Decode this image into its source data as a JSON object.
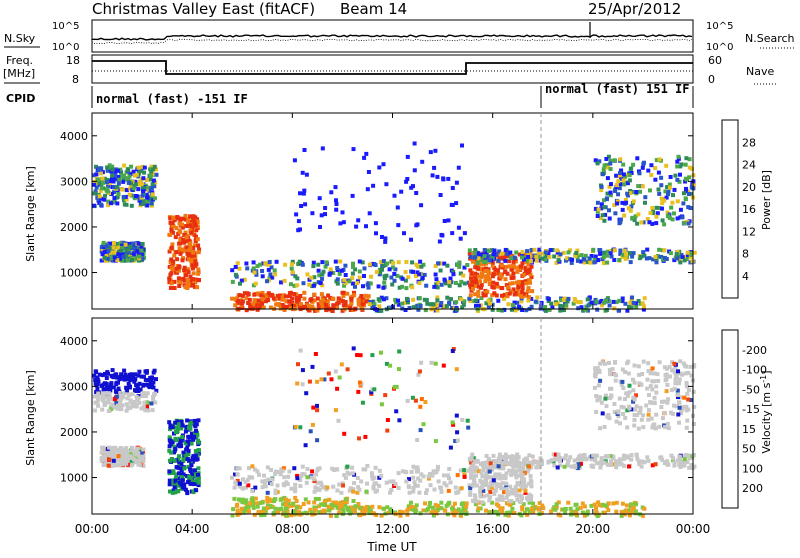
{
  "header": {
    "title": "Christmas Valley East (fitACF)",
    "beam": "Beam 14",
    "date": "25/Apr/2012"
  },
  "noise_panel": {
    "left_label": "N.Sky",
    "right_label": "N.Search",
    "left_ticks": [
      "10^5",
      "10^0"
    ],
    "right_ticks": [
      "10^5",
      "10^0"
    ]
  },
  "freq_panel": {
    "left_label_top": "Freq.",
    "left_label_bottom": "[MHz]",
    "right_label": "Nave",
    "left_ticks": [
      "18",
      "8"
    ],
    "right_ticks": [
      "60",
      "0"
    ]
  },
  "cpid": {
    "label": "CPID",
    "segments": [
      "normal (fast) -151 IF",
      "normal (fast) 151 IF"
    ]
  },
  "x_axis": {
    "label": "Time UT",
    "ticks": [
      "00:00",
      "04:00",
      "08:00",
      "12:00",
      "16:00",
      "20:00",
      "00:00"
    ]
  },
  "chart_data": [
    {
      "type": "heatmap",
      "panel": "power",
      "ylabel": "Slant Range [km]",
      "yticks": [
        1000,
        2000,
        3000,
        4000
      ],
      "ylim": [
        200,
        4500
      ],
      "colorbar": {
        "label": "Power [dB]",
        "ticks": [
          "4",
          "8",
          "12",
          "16",
          "20",
          "24",
          "28"
        ],
        "colors": [
          "#1a1aff",
          "#2a55c8",
          "#2f8a5a",
          "#4aa84a",
          "#e8c020",
          "#f07a10",
          "#e83010",
          "#ff0000"
        ]
      }
    },
    {
      "type": "heatmap",
      "panel": "velocity",
      "ylabel": "Slant Range [km]",
      "yticks": [
        1000,
        2000,
        3000,
        4000
      ],
      "ylim": [
        200,
        4500
      ],
      "colorbar": {
        "label": "Velocity [m s^-1]",
        "ticks": [
          "200",
          "100",
          "50",
          "15",
          "-15",
          "-50",
          "-100",
          "-200"
        ],
        "colors": [
          "#1010d0",
          "#2850b8",
          "#22a04a",
          "#7ac840",
          "#c8c8c8",
          "#f0a020",
          "#ff7000",
          "#f04010",
          "#ff0000"
        ]
      }
    }
  ]
}
